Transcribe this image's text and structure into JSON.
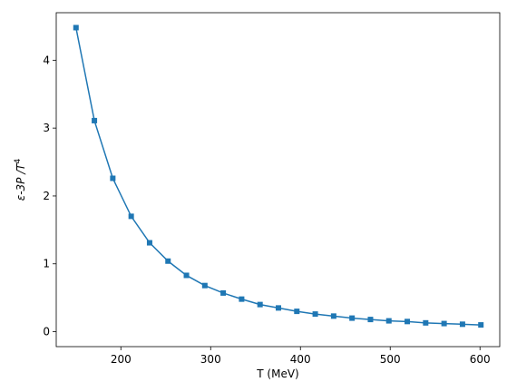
{
  "chart_data": {
    "type": "line",
    "xlabel": "T (MeV)",
    "ylabel": {
      "prefix": "ε-3P /T",
      "superscript": "4"
    },
    "xlim": [
      128,
      622
    ],
    "ylim": [
      -0.22,
      4.7
    ],
    "xticks": [
      200,
      300,
      400,
      500,
      600
    ],
    "yticks": [
      0,
      1,
      2,
      3,
      4
    ],
    "grid": false,
    "marker": "square",
    "color": "#1f77b4",
    "series": [
      {
        "x": [
          150,
          170.5,
          191,
          211.5,
          232,
          252.5,
          273,
          293.5,
          314,
          334.5,
          355,
          375.5,
          396,
          416.5,
          437,
          457.5,
          478,
          498.5,
          519,
          539.5,
          560,
          580.5,
          601
        ],
        "y": [
          4.48,
          3.11,
          2.26,
          1.7,
          1.31,
          1.04,
          0.83,
          0.68,
          0.57,
          0.48,
          0.4,
          0.35,
          0.3,
          0.26,
          0.23,
          0.2,
          0.18,
          0.16,
          0.15,
          0.13,
          0.12,
          0.11,
          0.1
        ]
      }
    ]
  }
}
